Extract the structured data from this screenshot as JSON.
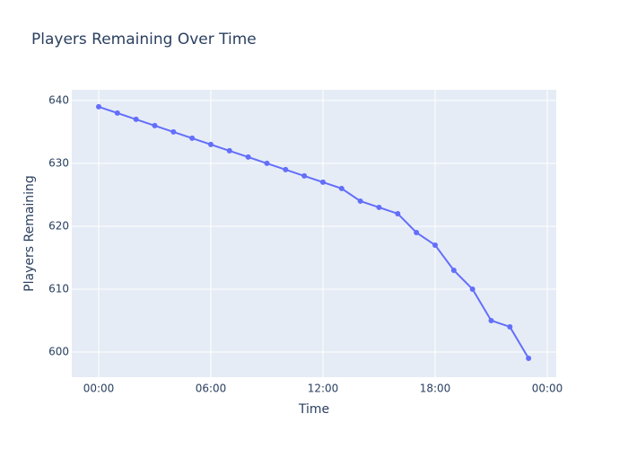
{
  "chart_data": {
    "type": "line",
    "title": "Players Remaining Over Time",
    "x_label": "Time",
    "y_label": "Players Remaining",
    "x": [
      0,
      1,
      2,
      3,
      4,
      5,
      6,
      7,
      8,
      9,
      10,
      11,
      12,
      13,
      14,
      15,
      16,
      17,
      18,
      19,
      20,
      21,
      22,
      23
    ],
    "series": [
      {
        "name": "Players Remaining",
        "color": "#636efa",
        "values": [
          639,
          638,
          637,
          636,
          635,
          634,
          633,
          632,
          631,
          630,
          629,
          628,
          627,
          626,
          624,
          623,
          622,
          619,
          617,
          613,
          610,
          605,
          604,
          599
        ]
      }
    ],
    "xlim": [
      -1.44,
      24.48
    ],
    "xticks": [
      {
        "value": 0,
        "label": "00:00"
      },
      {
        "value": 6,
        "label": "06:00"
      },
      {
        "value": 12,
        "label": "12:00"
      },
      {
        "value": 18,
        "label": "18:00"
      },
      {
        "value": 24,
        "label": "00:00"
      }
    ],
    "ylim": [
      596,
      641.7
    ],
    "yticks": [
      600,
      610,
      620,
      630,
      640
    ],
    "grid": true
  }
}
